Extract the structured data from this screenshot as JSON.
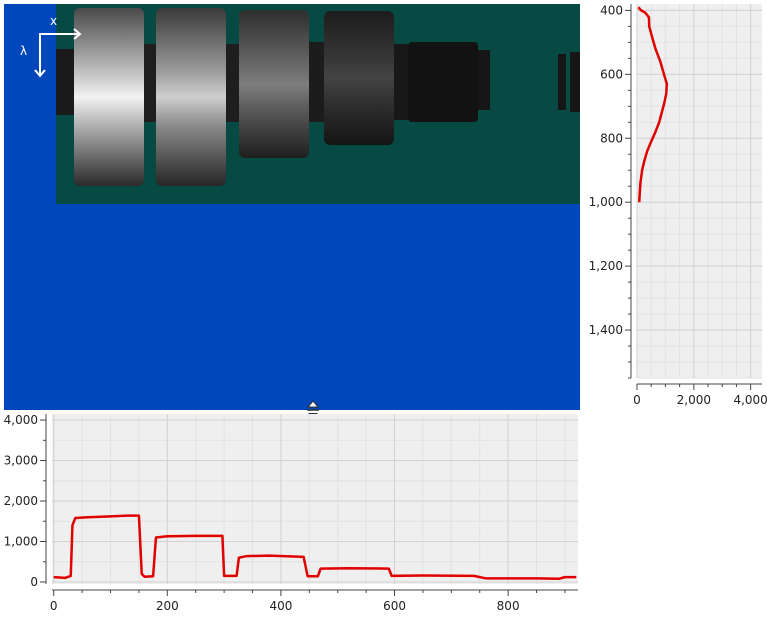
{
  "image_view": {
    "axis_x_label": "x",
    "axis_lambda_label": "λ",
    "background_color": "#0047bb",
    "image_background_color": "#074a43"
  },
  "chart_data": [
    {
      "type": "line",
      "name": "vertical-profile",
      "orientation": "vertical",
      "xlim": [
        0,
        4400
      ],
      "ylim": [
        1550,
        380
      ],
      "x_ticks": [
        0,
        2000,
        4000
      ],
      "x_tick_labels": [
        "0",
        "2,000",
        "4,000"
      ],
      "y_ticks": [
        400,
        600,
        800,
        1000,
        1200,
        1400
      ],
      "y_tick_labels": [
        "400",
        "600",
        "800",
        "1,000",
        "1,200",
        "1,400"
      ],
      "line_color": "#e00000",
      "grid": true,
      "points": [
        [
          50,
          390
        ],
        [
          120,
          398
        ],
        [
          300,
          408
        ],
        [
          420,
          422
        ],
        [
          430,
          450
        ],
        [
          520,
          480
        ],
        [
          650,
          520
        ],
        [
          820,
          560
        ],
        [
          950,
          600
        ],
        [
          1050,
          630
        ],
        [
          1030,
          660
        ],
        [
          960,
          690
        ],
        [
          870,
          720
        ],
        [
          780,
          750
        ],
        [
          650,
          780
        ],
        [
          500,
          810
        ],
        [
          360,
          840
        ],
        [
          260,
          870
        ],
        [
          180,
          900
        ],
        [
          120,
          940
        ],
        [
          90,
          980
        ],
        [
          80,
          1000
        ]
      ]
    },
    {
      "type": "line",
      "name": "horizontal-profile",
      "orientation": "horizontal",
      "xlim": [
        -3,
        923
      ],
      "ylim": [
        -50,
        4150
      ],
      "x_ticks": [
        0,
        200,
        400,
        600,
        800
      ],
      "x_tick_labels": [
        "0",
        "200",
        "400",
        "600",
        "800"
      ],
      "y_ticks": [
        0,
        1000,
        2000,
        3000,
        4000
      ],
      "y_tick_labels": [
        "0",
        "1,000",
        "2,000",
        "3,000",
        "4,000"
      ],
      "line_color": "#e00000",
      "grid": true,
      "points": [
        [
          0,
          120
        ],
        [
          20,
          100
        ],
        [
          30,
          150
        ],
        [
          33,
          1400
        ],
        [
          38,
          1580
        ],
        [
          60,
          1600
        ],
        [
          100,
          1620
        ],
        [
          130,
          1640
        ],
        [
          150,
          1640
        ],
        [
          155,
          200
        ],
        [
          160,
          130
        ],
        [
          175,
          140
        ],
        [
          180,
          1100
        ],
        [
          200,
          1130
        ],
        [
          250,
          1140
        ],
        [
          297,
          1140
        ],
        [
          300,
          150
        ],
        [
          322,
          150
        ],
        [
          326,
          600
        ],
        [
          340,
          640
        ],
        [
          380,
          650
        ],
        [
          440,
          620
        ],
        [
          447,
          140
        ],
        [
          465,
          140
        ],
        [
          470,
          330
        ],
        [
          520,
          340
        ],
        [
          590,
          330
        ],
        [
          595,
          150
        ],
        [
          650,
          160
        ],
        [
          740,
          150
        ],
        [
          760,
          90
        ],
        [
          850,
          90
        ],
        [
          890,
          80
        ],
        [
          900,
          120
        ],
        [
          920,
          120
        ]
      ]
    }
  ]
}
